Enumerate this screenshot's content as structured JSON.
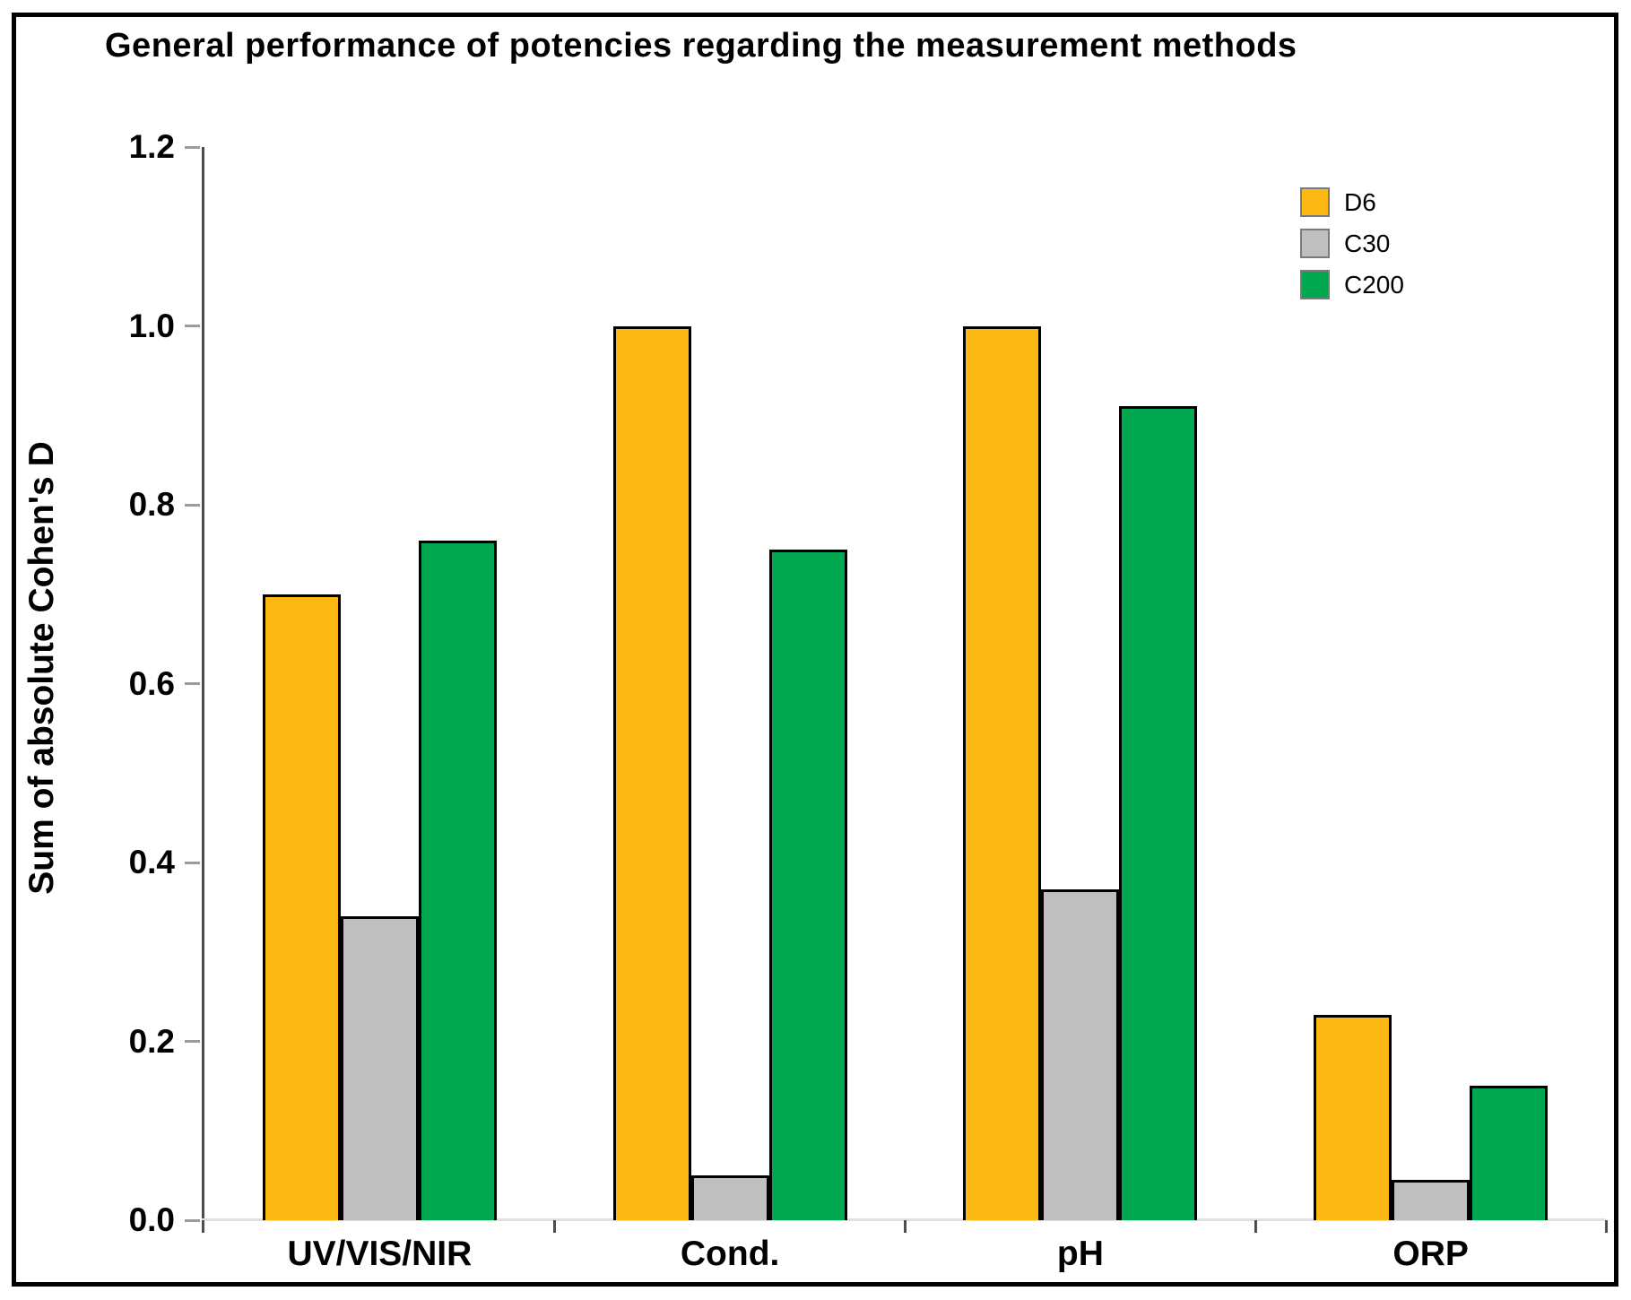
{
  "chart_data": {
    "type": "bar",
    "title": "General performance of potencies regarding the measurement methods",
    "xlabel": "",
    "ylabel": "Sum of absolute Cohen's D",
    "ylim": [
      0,
      1.2
    ],
    "ytick_step": 0.2,
    "ytick_labels": [
      "1.2",
      "1.0",
      "0.8",
      "0.6",
      "0.4",
      "0.2",
      "0.0"
    ],
    "categories": [
      "UV/VIS/NIR",
      "Cond.",
      "pH",
      "ORP"
    ],
    "series": [
      {
        "name": "D6",
        "color": "#FDB813",
        "values": [
          0.7,
          1.0,
          1.0,
          0.23
        ]
      },
      {
        "name": "C30",
        "color": "#BFBFBF",
        "values": [
          0.34,
          0.05,
          0.37,
          0.045
        ]
      },
      {
        "name": "C200",
        "color": "#00A94F",
        "values": [
          0.76,
          0.75,
          0.91,
          0.15
        ]
      }
    ],
    "legend_position": "upper right",
    "grid": false,
    "colors": {
      "y_axis": "#4d4d4d",
      "x_axis": "#e0e0e0",
      "bar_outline": "#000000",
      "figure_border": "#000000"
    }
  }
}
